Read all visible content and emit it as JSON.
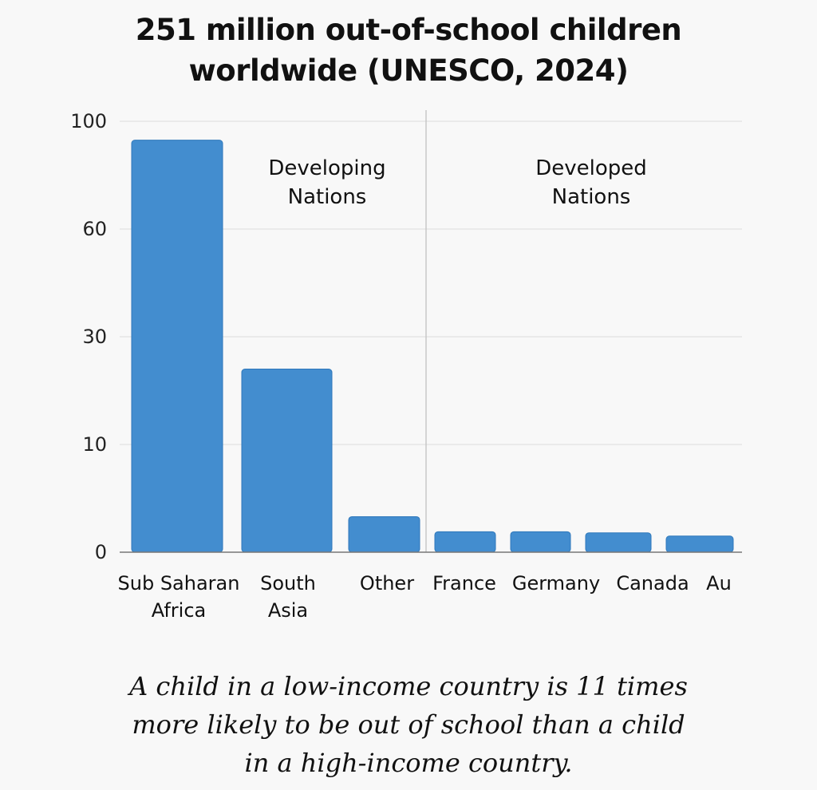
{
  "chart_data": {
    "type": "bar",
    "title": "251 million out-of-school children\nworldwide (UNESCO, 2024)",
    "categories": [
      "Sub Saharan\nAfrica",
      "South\nAsia",
      "Other",
      "France",
      "Germany",
      "Canada",
      "Au"
    ],
    "values": [
      93,
      24,
      3.3,
      1.9,
      1.9,
      1.8,
      1.5
    ],
    "yticks": [
      0,
      10,
      30,
      60,
      100
    ],
    "ytick_labels": [
      "0",
      "10",
      "30",
      "60",
      "100"
    ],
    "ylim": [
      0,
      100
    ],
    "y_scale": "non-linear (ticks evenly spaced)",
    "grid": true,
    "xlabel": "",
    "ylabel": "",
    "annotations": [
      "Developing\nNations",
      "Developed\nNations"
    ],
    "bar_color": "#438dcf"
  },
  "caption": "A child in a low-income country is 11 times\n more likely to be out of school than a child\nin a high-income country."
}
